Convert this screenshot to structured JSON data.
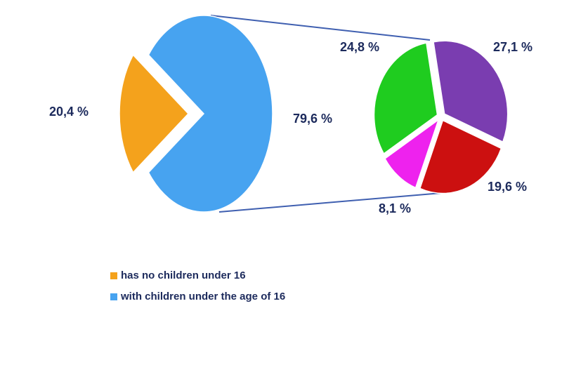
{
  "chart_data": [
    {
      "type": "pie",
      "categories": [
        "has no children under 16",
        "with children under the age of 16"
      ],
      "values": [
        20.4,
        79.6
      ],
      "value_labels": [
        "20,4 %",
        "79,6 %"
      ],
      "colors": [
        "#f4a21c",
        "#47a3f0"
      ],
      "legend": "bottom"
    },
    {
      "type": "pie",
      "values": [
        27.1,
        19.6,
        8.1,
        24.8
      ],
      "value_labels": [
        "27,1 %",
        "19,6 %",
        "8,1 %",
        "24,8 %"
      ],
      "colors": [
        "#7a3db0",
        "#cc1010",
        "#ee22ee",
        "#1fcc1f"
      ]
    }
  ]
}
